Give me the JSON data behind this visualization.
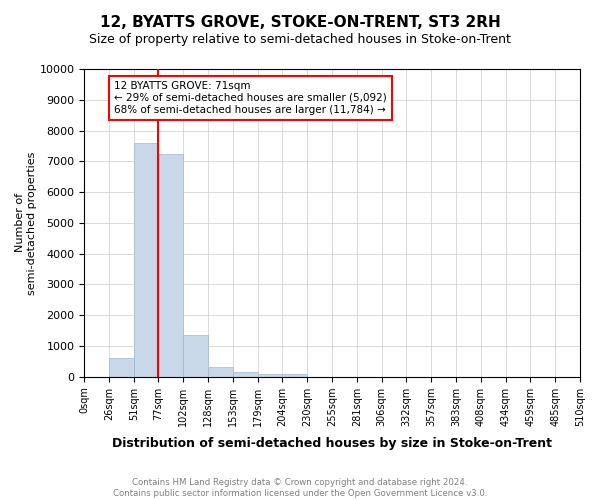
{
  "title": "12, BYATTS GROVE, STOKE-ON-TRENT, ST3 2RH",
  "subtitle": "Size of property relative to semi-detached houses in Stoke-on-Trent",
  "xlabel": "Distribution of semi-detached houses by size in Stoke-on-Trent",
  "ylabel": "Number of\nsemi-detached properties",
  "footnote": "Contains HM Land Registry data © Crown copyright and database right 2024.\nContains public sector information licensed under the Open Government Licence v3.0.",
  "bin_labels": [
    "0sqm",
    "26sqm",
    "51sqm",
    "77sqm",
    "102sqm",
    "128sqm",
    "153sqm",
    "179sqm",
    "204sqm",
    "230sqm",
    "255sqm",
    "281sqm",
    "306sqm",
    "332sqm",
    "357sqm",
    "383sqm",
    "408sqm",
    "434sqm",
    "459sqm",
    "485sqm",
    "510sqm"
  ],
  "bar_values": [
    0,
    600,
    7600,
    7250,
    1350,
    325,
    150,
    100,
    75,
    0,
    0,
    0,
    0,
    0,
    0,
    0,
    0,
    0,
    0,
    0
  ],
  "bar_color": "#c8d8e8",
  "bar_edge_color": "#a0b8cc",
  "red_line_x": 3.0,
  "annotation_title": "12 BYATTS GROVE: 71sqm",
  "annotation_line1": "← 29% of semi-detached houses are smaller (5,092)",
  "annotation_line2": "68% of semi-detached houses are larger (11,784) →",
  "ylim": [
    0,
    10000
  ],
  "yticks": [
    0,
    1000,
    2000,
    3000,
    4000,
    5000,
    6000,
    7000,
    8000,
    9000,
    10000
  ],
  "grid_color": "#cccccc",
  "background_color": "#ffffff"
}
